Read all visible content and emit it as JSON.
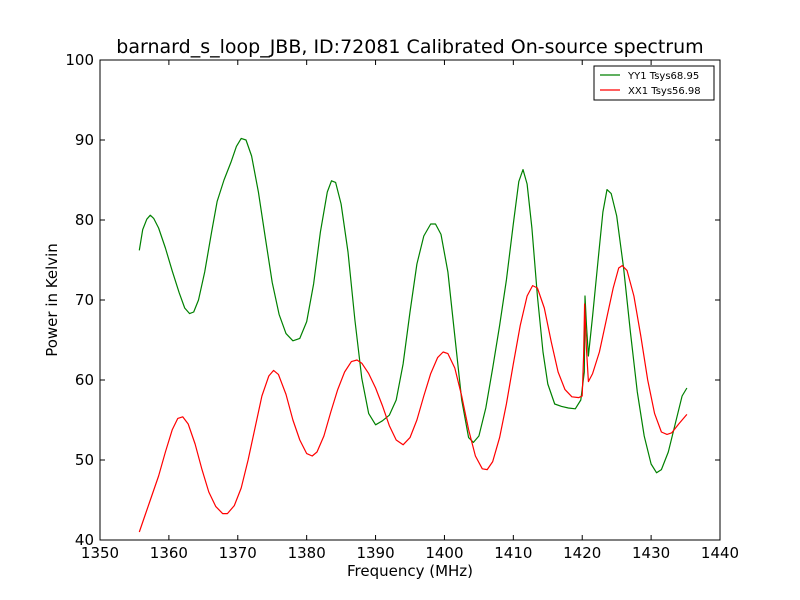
{
  "chart_data": {
    "type": "line",
    "title": "barnard_s_loop_JBB, ID:72081 Calibrated On-source spectrum",
    "xlabel": "Frequency (MHz)",
    "ylabel": "Power in Kelvin",
    "xlim": [
      1350,
      1440
    ],
    "ylim": [
      40,
      100
    ],
    "xticks": [
      1350,
      1360,
      1370,
      1380,
      1390,
      1400,
      1410,
      1420,
      1430,
      1440
    ],
    "yticks": [
      40,
      50,
      60,
      70,
      80,
      90,
      100
    ],
    "grid": false,
    "legend_position": "top-right",
    "series": [
      {
        "name": "YY1 Tsys68.95",
        "color": "#008000",
        "points": [
          [
            1355.7,
            76.2
          ],
          [
            1356.2,
            78.8
          ],
          [
            1356.8,
            80.1
          ],
          [
            1357.3,
            80.6
          ],
          [
            1357.8,
            80.2
          ],
          [
            1358.5,
            79.0
          ],
          [
            1359.5,
            76.5
          ],
          [
            1360.5,
            73.6
          ],
          [
            1361.5,
            70.9
          ],
          [
            1362.3,
            69.0
          ],
          [
            1363.0,
            68.3
          ],
          [
            1363.6,
            68.5
          ],
          [
            1364.3,
            70.0
          ],
          [
            1365.2,
            73.5
          ],
          [
            1366.2,
            78.5
          ],
          [
            1367.0,
            82.3
          ],
          [
            1368.0,
            85.0
          ],
          [
            1369.0,
            87.2
          ],
          [
            1369.8,
            89.2
          ],
          [
            1370.5,
            90.2
          ],
          [
            1371.2,
            90.0
          ],
          [
            1372.0,
            88.0
          ],
          [
            1373.0,
            83.5
          ],
          [
            1374.0,
            77.8
          ],
          [
            1375.0,
            72.2
          ],
          [
            1376.0,
            68.2
          ],
          [
            1377.0,
            65.8
          ],
          [
            1378.0,
            64.9
          ],
          [
            1379.0,
            65.2
          ],
          [
            1380.0,
            67.3
          ],
          [
            1381.0,
            72.0
          ],
          [
            1382.0,
            78.5
          ],
          [
            1383.0,
            83.5
          ],
          [
            1383.6,
            84.9
          ],
          [
            1384.2,
            84.7
          ],
          [
            1385.0,
            82.0
          ],
          [
            1386.0,
            76.0
          ],
          [
            1387.0,
            67.5
          ],
          [
            1388.0,
            60.2
          ],
          [
            1389.0,
            55.8
          ],
          [
            1390.0,
            54.4
          ],
          [
            1391.0,
            54.9
          ],
          [
            1392.0,
            55.6
          ],
          [
            1393.0,
            57.5
          ],
          [
            1394.0,
            62.0
          ],
          [
            1395.0,
            68.5
          ],
          [
            1396.0,
            74.5
          ],
          [
            1397.0,
            78.0
          ],
          [
            1398.0,
            79.5
          ],
          [
            1398.7,
            79.5
          ],
          [
            1399.5,
            78.2
          ],
          [
            1400.5,
            73.5
          ],
          [
            1401.5,
            65.5
          ],
          [
            1402.5,
            57.5
          ],
          [
            1403.5,
            52.8
          ],
          [
            1404.2,
            52.2
          ],
          [
            1405.0,
            53.0
          ],
          [
            1406.0,
            56.5
          ],
          [
            1407.0,
            61.5
          ],
          [
            1408.0,
            66.8
          ],
          [
            1409.0,
            72.5
          ],
          [
            1410.0,
            79.5
          ],
          [
            1410.8,
            84.8
          ],
          [
            1411.4,
            86.3
          ],
          [
            1412.0,
            84.5
          ],
          [
            1412.7,
            79.0
          ],
          [
            1413.5,
            70.5
          ],
          [
            1414.3,
            63.5
          ],
          [
            1415.0,
            59.5
          ],
          [
            1416.0,
            57.0
          ],
          [
            1417.0,
            56.7
          ],
          [
            1418.0,
            56.5
          ],
          [
            1419.0,
            56.4
          ],
          [
            1419.8,
            57.5
          ],
          [
            1420.3,
            61.0
          ],
          [
            1420.4,
            70.5
          ],
          [
            1420.6,
            67.0
          ],
          [
            1420.9,
            63.0
          ],
          [
            1421.5,
            68.0
          ],
          [
            1422.3,
            75.0
          ],
          [
            1423.0,
            81.0
          ],
          [
            1423.6,
            83.8
          ],
          [
            1424.2,
            83.3
          ],
          [
            1425.0,
            80.5
          ],
          [
            1426.0,
            74.0
          ],
          [
            1427.0,
            66.0
          ],
          [
            1428.0,
            58.5
          ],
          [
            1429.0,
            53.0
          ],
          [
            1430.0,
            49.5
          ],
          [
            1430.8,
            48.4
          ],
          [
            1431.5,
            48.8
          ],
          [
            1432.5,
            51.0
          ],
          [
            1433.5,
            54.5
          ],
          [
            1434.5,
            58.0
          ],
          [
            1435.2,
            59.0
          ]
        ]
      },
      {
        "name": "XX1 Tsys56.98",
        "color": "#ff0000",
        "points": [
          [
            1355.7,
            41.0
          ],
          [
            1356.5,
            43.0
          ],
          [
            1357.5,
            45.5
          ],
          [
            1358.5,
            48.0
          ],
          [
            1359.5,
            51.0
          ],
          [
            1360.5,
            53.8
          ],
          [
            1361.3,
            55.2
          ],
          [
            1362.0,
            55.4
          ],
          [
            1362.8,
            54.5
          ],
          [
            1363.8,
            52.0
          ],
          [
            1364.8,
            48.8
          ],
          [
            1365.8,
            46.0
          ],
          [
            1366.8,
            44.2
          ],
          [
            1367.8,
            43.3
          ],
          [
            1368.5,
            43.3
          ],
          [
            1369.5,
            44.3
          ],
          [
            1370.5,
            46.5
          ],
          [
            1371.5,
            50.0
          ],
          [
            1372.5,
            54.0
          ],
          [
            1373.5,
            58.0
          ],
          [
            1374.5,
            60.5
          ],
          [
            1375.2,
            61.2
          ],
          [
            1375.9,
            60.7
          ],
          [
            1377.0,
            58.2
          ],
          [
            1378.0,
            55.0
          ],
          [
            1379.0,
            52.5
          ],
          [
            1380.0,
            50.8
          ],
          [
            1380.8,
            50.5
          ],
          [
            1381.5,
            51.0
          ],
          [
            1382.5,
            53.0
          ],
          [
            1383.5,
            56.0
          ],
          [
            1384.5,
            58.8
          ],
          [
            1385.5,
            61.0
          ],
          [
            1386.5,
            62.3
          ],
          [
            1387.3,
            62.5
          ],
          [
            1388.0,
            62.1
          ],
          [
            1389.0,
            60.8
          ],
          [
            1390.0,
            59.0
          ],
          [
            1391.0,
            56.8
          ],
          [
            1392.0,
            54.3
          ],
          [
            1393.0,
            52.5
          ],
          [
            1394.0,
            51.9
          ],
          [
            1395.0,
            52.8
          ],
          [
            1396.0,
            55.0
          ],
          [
            1397.0,
            58.0
          ],
          [
            1398.0,
            60.8
          ],
          [
            1399.0,
            62.8
          ],
          [
            1399.8,
            63.5
          ],
          [
            1400.5,
            63.3
          ],
          [
            1401.5,
            61.5
          ],
          [
            1402.5,
            58.0
          ],
          [
            1403.5,
            53.8
          ],
          [
            1404.5,
            50.5
          ],
          [
            1405.5,
            48.9
          ],
          [
            1406.2,
            48.8
          ],
          [
            1407.0,
            49.8
          ],
          [
            1408.0,
            52.8
          ],
          [
            1409.0,
            57.0
          ],
          [
            1410.0,
            62.0
          ],
          [
            1411.0,
            66.8
          ],
          [
            1412.0,
            70.5
          ],
          [
            1412.8,
            71.8
          ],
          [
            1413.5,
            71.5
          ],
          [
            1414.5,
            69.0
          ],
          [
            1415.5,
            64.8
          ],
          [
            1416.5,
            61.0
          ],
          [
            1417.5,
            58.8
          ],
          [
            1418.5,
            57.9
          ],
          [
            1419.5,
            57.8
          ],
          [
            1420.0,
            58.0
          ],
          [
            1420.2,
            63.0
          ],
          [
            1420.35,
            69.5
          ],
          [
            1420.6,
            64.0
          ],
          [
            1420.9,
            59.8
          ],
          [
            1421.5,
            60.8
          ],
          [
            1422.5,
            63.5
          ],
          [
            1423.5,
            67.5
          ],
          [
            1424.5,
            71.5
          ],
          [
            1425.3,
            74.0
          ],
          [
            1425.8,
            74.3
          ],
          [
            1426.5,
            73.7
          ],
          [
            1427.5,
            70.5
          ],
          [
            1428.5,
            65.5
          ],
          [
            1429.5,
            60.0
          ],
          [
            1430.5,
            55.8
          ],
          [
            1431.5,
            53.5
          ],
          [
            1432.3,
            53.2
          ],
          [
            1433.0,
            53.4
          ],
          [
            1434.0,
            54.5
          ],
          [
            1435.2,
            55.7
          ]
        ]
      }
    ]
  }
}
